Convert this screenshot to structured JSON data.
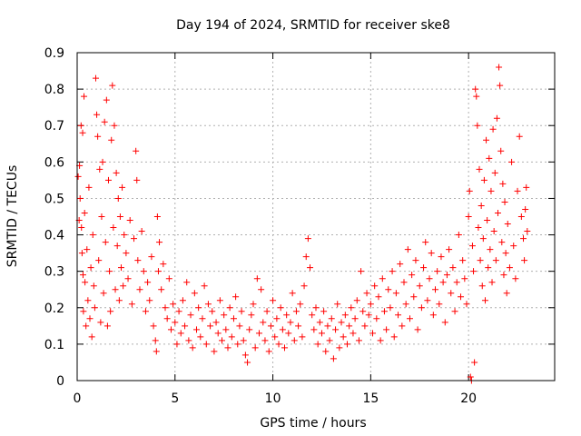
{
  "chart_data": {
    "type": "scatter",
    "title": "Day 194 of 2024, SRMTID for receiver ske8",
    "xlabel": "GPS time / hours",
    "ylabel": "SRMTID / TECUs",
    "xlim": [
      0,
      24.4
    ],
    "ylim": [
      0,
      0.9
    ],
    "xticks": [
      0,
      5,
      10,
      15,
      20
    ],
    "xtick_labels": [
      "0",
      "5",
      "10",
      "15",
      "20"
    ],
    "yticks": [
      0,
      0.1,
      0.2,
      0.3,
      0.4,
      0.5,
      0.6,
      0.7,
      0.8,
      0.9
    ],
    "ytick_labels": [
      "0",
      "0.1",
      "0.2",
      "0.3",
      "0.4",
      "0.5",
      "0.6",
      "0.7",
      "0.8",
      "0.9"
    ],
    "grid": true,
    "marker": "+",
    "series": [
      {
        "name": "SRMTID",
        "color": "#ff0000",
        "points": [
          [
            0.05,
            0.56
          ],
          [
            0.1,
            0.44
          ],
          [
            0.12,
            0.59
          ],
          [
            0.15,
            0.5
          ],
          [
            0.2,
            0.7
          ],
          [
            0.22,
            0.42
          ],
          [
            0.25,
            0.35
          ],
          [
            0.28,
            0.68
          ],
          [
            0.3,
            0.29
          ],
          [
            0.32,
            0.19
          ],
          [
            0.35,
            0.78
          ],
          [
            0.38,
            0.46
          ],
          [
            0.4,
            0.27
          ],
          [
            0.45,
            0.15
          ],
          [
            0.5,
            0.36
          ],
          [
            0.55,
            0.22
          ],
          [
            0.6,
            0.53
          ],
          [
            0.65,
            0.17
          ],
          [
            0.7,
            0.31
          ],
          [
            0.75,
            0.12
          ],
          [
            0.8,
            0.4
          ],
          [
            0.85,
            0.26
          ],
          [
            0.9,
            0.2
          ],
          [
            0.95,
            0.83
          ],
          [
            1.0,
            0.73
          ],
          [
            1.05,
            0.67
          ],
          [
            1.1,
            0.33
          ],
          [
            1.15,
            0.58
          ],
          [
            1.2,
            0.16
          ],
          [
            1.25,
            0.45
          ],
          [
            1.3,
            0.6
          ],
          [
            1.35,
            0.24
          ],
          [
            1.4,
            0.71
          ],
          [
            1.45,
            0.38
          ],
          [
            1.5,
            0.77
          ],
          [
            1.55,
            0.15
          ],
          [
            1.6,
            0.55
          ],
          [
            1.65,
            0.3
          ],
          [
            1.7,
            0.19
          ],
          [
            1.75,
            0.66
          ],
          [
            1.8,
            0.81
          ],
          [
            1.85,
            0.42
          ],
          [
            1.9,
            0.7
          ],
          [
            1.95,
            0.25
          ],
          [
            2.0,
            0.57
          ],
          [
            2.05,
            0.37
          ],
          [
            2.1,
            0.5
          ],
          [
            2.15,
            0.22
          ],
          [
            2.2,
            0.45
          ],
          [
            2.25,
            0.31
          ],
          [
            2.3,
            0.53
          ],
          [
            2.35,
            0.26
          ],
          [
            2.4,
            0.4
          ],
          [
            2.5,
            0.35
          ],
          [
            2.6,
            0.28
          ],
          [
            2.7,
            0.44
          ],
          [
            2.8,
            0.21
          ],
          [
            2.9,
            0.39
          ],
          [
            3.0,
            0.63
          ],
          [
            3.05,
            0.55
          ],
          [
            3.1,
            0.33
          ],
          [
            3.2,
            0.25
          ],
          [
            3.3,
            0.41
          ],
          [
            3.4,
            0.3
          ],
          [
            3.5,
            0.19
          ],
          [
            3.6,
            0.27
          ],
          [
            3.7,
            0.22
          ],
          [
            3.8,
            0.34
          ],
          [
            3.9,
            0.15
          ],
          [
            4.0,
            0.11
          ],
          [
            4.05,
            0.08
          ],
          [
            4.1,
            0.45
          ],
          [
            4.15,
            0.3
          ],
          [
            4.2,
            0.38
          ],
          [
            4.3,
            0.25
          ],
          [
            4.4,
            0.32
          ],
          [
            4.5,
            0.2
          ],
          [
            4.6,
            0.17
          ],
          [
            4.7,
            0.28
          ],
          [
            4.8,
            0.14
          ],
          [
            4.9,
            0.21
          ],
          [
            5.0,
            0.16
          ],
          [
            5.1,
            0.1
          ],
          [
            5.2,
            0.19
          ],
          [
            5.3,
            0.13
          ],
          [
            5.4,
            0.22
          ],
          [
            5.5,
            0.15
          ],
          [
            5.6,
            0.27
          ],
          [
            5.7,
            0.11
          ],
          [
            5.8,
            0.18
          ],
          [
            5.9,
            0.09
          ],
          [
            6.0,
            0.24
          ],
          [
            6.1,
            0.14
          ],
          [
            6.2,
            0.2
          ],
          [
            6.3,
            0.12
          ],
          [
            6.4,
            0.17
          ],
          [
            6.5,
            0.26
          ],
          [
            6.6,
            0.1
          ],
          [
            6.7,
            0.21
          ],
          [
            6.8,
            0.15
          ],
          [
            6.9,
            0.19
          ],
          [
            7.0,
            0.08
          ],
          [
            7.1,
            0.16
          ],
          [
            7.2,
            0.13
          ],
          [
            7.3,
            0.22
          ],
          [
            7.4,
            0.11
          ],
          [
            7.5,
            0.18
          ],
          [
            7.6,
            0.14
          ],
          [
            7.7,
            0.09
          ],
          [
            7.8,
            0.2
          ],
          [
            7.9,
            0.12
          ],
          [
            8.0,
            0.17
          ],
          [
            8.1,
            0.23
          ],
          [
            8.2,
            0.1
          ],
          [
            8.3,
            0.15
          ],
          [
            8.4,
            0.19
          ],
          [
            8.5,
            0.11
          ],
          [
            8.6,
            0.07
          ],
          [
            8.7,
            0.05
          ],
          [
            8.8,
            0.14
          ],
          [
            8.9,
            0.18
          ],
          [
            9.0,
            0.21
          ],
          [
            9.1,
            0.09
          ],
          [
            9.2,
            0.28
          ],
          [
            9.3,
            0.13
          ],
          [
            9.4,
            0.25
          ],
          [
            9.5,
            0.16
          ],
          [
            9.6,
            0.11
          ],
          [
            9.7,
            0.19
          ],
          [
            9.8,
            0.08
          ],
          [
            9.9,
            0.15
          ],
          [
            10.0,
            0.22
          ],
          [
            10.1,
            0.12
          ],
          [
            10.2,
            0.17
          ],
          [
            10.3,
            0.1
          ],
          [
            10.4,
            0.2
          ],
          [
            10.5,
            0.14
          ],
          [
            10.6,
            0.09
          ],
          [
            10.7,
            0.18
          ],
          [
            10.8,
            0.13
          ],
          [
            10.9,
            0.16
          ],
          [
            11.0,
            0.24
          ],
          [
            11.1,
            0.11
          ],
          [
            11.2,
            0.19
          ],
          [
            11.3,
            0.15
          ],
          [
            11.4,
            0.21
          ],
          [
            11.5,
            0.12
          ],
          [
            11.6,
            0.26
          ],
          [
            11.7,
            0.34
          ],
          [
            11.8,
            0.39
          ],
          [
            11.9,
            0.31
          ],
          [
            12.0,
            0.18
          ],
          [
            12.1,
            0.14
          ],
          [
            12.2,
            0.2
          ],
          [
            12.3,
            0.1
          ],
          [
            12.4,
            0.16
          ],
          [
            12.5,
            0.13
          ],
          [
            12.6,
            0.19
          ],
          [
            12.7,
            0.08
          ],
          [
            12.8,
            0.15
          ],
          [
            12.9,
            0.11
          ],
          [
            13.0,
            0.17
          ],
          [
            13.1,
            0.06
          ],
          [
            13.2,
            0.14
          ],
          [
            13.3,
            0.21
          ],
          [
            13.4,
            0.09
          ],
          [
            13.5,
            0.16
          ],
          [
            13.6,
            0.12
          ],
          [
            13.7,
            0.18
          ],
          [
            13.8,
            0.1
          ],
          [
            13.9,
            0.15
          ],
          [
            14.0,
            0.2
          ],
          [
            14.1,
            0.13
          ],
          [
            14.2,
            0.17
          ],
          [
            14.3,
            0.22
          ],
          [
            14.4,
            0.11
          ],
          [
            14.5,
            0.3
          ],
          [
            14.6,
            0.19
          ],
          [
            14.7,
            0.15
          ],
          [
            14.8,
            0.24
          ],
          [
            14.9,
            0.18
          ],
          [
            15.0,
            0.21
          ],
          [
            15.1,
            0.13
          ],
          [
            15.2,
            0.26
          ],
          [
            15.3,
            0.17
          ],
          [
            15.4,
            0.23
          ],
          [
            15.5,
            0.11
          ],
          [
            15.6,
            0.28
          ],
          [
            15.7,
            0.19
          ],
          [
            15.8,
            0.14
          ],
          [
            15.9,
            0.25
          ],
          [
            16.0,
            0.2
          ],
          [
            16.1,
            0.3
          ],
          [
            16.2,
            0.12
          ],
          [
            16.3,
            0.24
          ],
          [
            16.4,
            0.18
          ],
          [
            16.5,
            0.32
          ],
          [
            16.6,
            0.15
          ],
          [
            16.7,
            0.27
          ],
          [
            16.8,
            0.21
          ],
          [
            16.9,
            0.36
          ],
          [
            17.0,
            0.17
          ],
          [
            17.1,
            0.29
          ],
          [
            17.2,
            0.23
          ],
          [
            17.3,
            0.33
          ],
          [
            17.4,
            0.14
          ],
          [
            17.5,
            0.26
          ],
          [
            17.6,
            0.2
          ],
          [
            17.7,
            0.31
          ],
          [
            17.8,
            0.38
          ],
          [
            17.9,
            0.22
          ],
          [
            18.0,
            0.28
          ],
          [
            18.1,
            0.35
          ],
          [
            18.2,
            0.18
          ],
          [
            18.3,
            0.25
          ],
          [
            18.4,
            0.3
          ],
          [
            18.5,
            0.21
          ],
          [
            18.6,
            0.34
          ],
          [
            18.7,
            0.27
          ],
          [
            18.8,
            0.16
          ],
          [
            18.9,
            0.29
          ],
          [
            19.0,
            0.36
          ],
          [
            19.1,
            0.24
          ],
          [
            19.2,
            0.31
          ],
          [
            19.3,
            0.19
          ],
          [
            19.4,
            0.27
          ],
          [
            19.5,
            0.4
          ],
          [
            19.6,
            0.23
          ],
          [
            19.7,
            0.33
          ],
          [
            19.8,
            0.28
          ],
          [
            19.9,
            0.21
          ],
          [
            20.0,
            0.45
          ],
          [
            20.05,
            0.52
          ],
          [
            20.1,
            0.01
          ],
          [
            20.15,
            0.0
          ],
          [
            20.2,
            0.37
          ],
          [
            20.25,
            0.3
          ],
          [
            20.3,
            0.05
          ],
          [
            20.35,
            0.8
          ],
          [
            20.4,
            0.78
          ],
          [
            20.45,
            0.7
          ],
          [
            20.5,
            0.42
          ],
          [
            20.55,
            0.58
          ],
          [
            20.6,
            0.33
          ],
          [
            20.65,
            0.48
          ],
          [
            20.7,
            0.26
          ],
          [
            20.75,
            0.39
          ],
          [
            20.8,
            0.55
          ],
          [
            20.85,
            0.22
          ],
          [
            20.9,
            0.66
          ],
          [
            20.95,
            0.44
          ],
          [
            21.0,
            0.31
          ],
          [
            21.05,
            0.61
          ],
          [
            21.1,
            0.36
          ],
          [
            21.15,
            0.52
          ],
          [
            21.2,
            0.27
          ],
          [
            21.25,
            0.69
          ],
          [
            21.3,
            0.41
          ],
          [
            21.35,
            0.57
          ],
          [
            21.4,
            0.33
          ],
          [
            21.45,
            0.72
          ],
          [
            21.5,
            0.46
          ],
          [
            21.55,
            0.86
          ],
          [
            21.6,
            0.81
          ],
          [
            21.65,
            0.63
          ],
          [
            21.7,
            0.38
          ],
          [
            21.75,
            0.54
          ],
          [
            21.8,
            0.29
          ],
          [
            21.85,
            0.49
          ],
          [
            21.9,
            0.35
          ],
          [
            21.95,
            0.24
          ],
          [
            22.0,
            0.43
          ],
          [
            22.1,
            0.31
          ],
          [
            22.2,
            0.6
          ],
          [
            22.3,
            0.37
          ],
          [
            22.4,
            0.28
          ],
          [
            22.5,
            0.52
          ],
          [
            22.6,
            0.67
          ],
          [
            22.7,
            0.45
          ],
          [
            22.8,
            0.39
          ],
          [
            22.85,
            0.33
          ],
          [
            22.9,
            0.47
          ],
          [
            22.95,
            0.53
          ],
          [
            23.0,
            0.41
          ]
        ]
      }
    ]
  }
}
